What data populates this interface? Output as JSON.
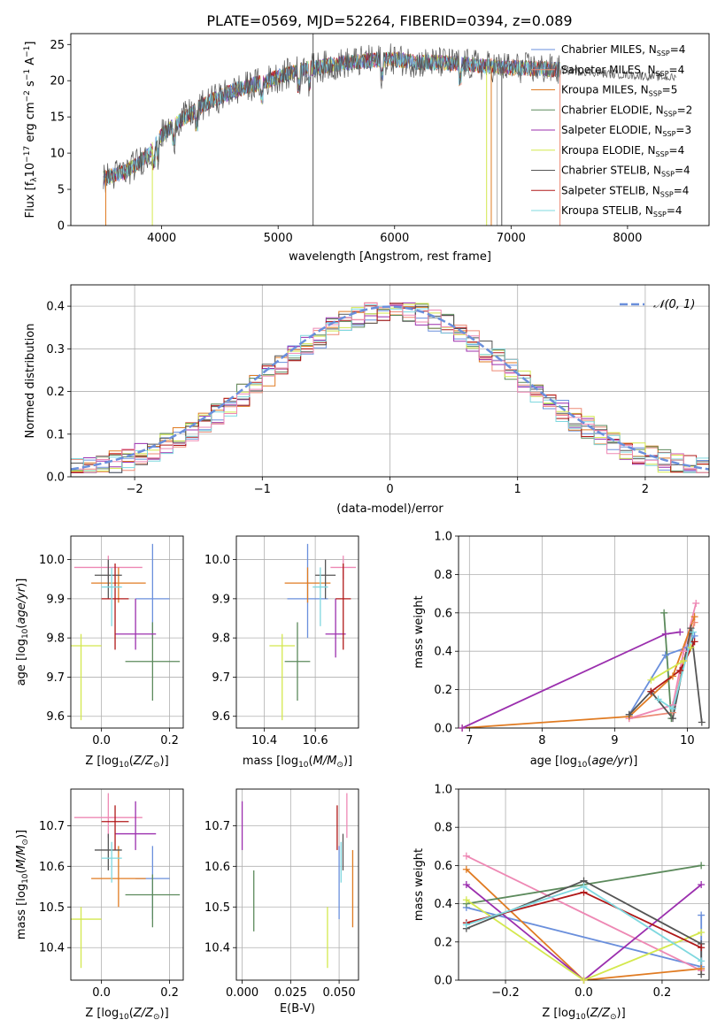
{
  "figure_title": "PLATE=0569, MJD=52264, FIBERID=0394, z=0.089",
  "series_colors": {
    "Chabrier MILES": "#6a8fdc",
    "Salpeter MILES": "#ed8a76",
    "Kroupa MILES": "#e07b22",
    "Chabrier ELODIE": "#5c8a5c",
    "Salpeter ELODIE": "#9b2fae",
    "Kroupa ELODIE": "#d4e84e",
    "Chabrier STELIB": "#555555",
    "Salpeter STELIB": "#b01818",
    "Kroupa STELIB": "#7fd8df",
    "pink": "#ee88b4"
  },
  "chart_data": [
    {
      "panel": "spectrum",
      "type": "line",
      "xlabel": "wavelength [Angstrom, rest frame]",
      "ylabel": "Flux [f_λ10^-17 erg cm^-2 s^-1 A^-1]",
      "xlim": [
        3220,
        8700
      ],
      "ylim": [
        0,
        26.5
      ],
      "xticks": [
        4000,
        5000,
        6000,
        7000,
        8000
      ],
      "yticks": [
        0,
        5,
        10,
        15,
        20,
        25
      ],
      "grid": false,
      "legend_position": "top-right",
      "legend": [
        {
          "label": "Chabrier MILES, N",
          "sub": "SSP",
          "tail": "=4",
          "color": "#6a8fdc"
        },
        {
          "label": "Salpeter MILES, N",
          "sub": "SSP",
          "tail": "=4",
          "color": "#ed8a76"
        },
        {
          "label": "Kroupa MILES, N",
          "sub": "SSP",
          "tail": "=5",
          "color": "#e07b22"
        },
        {
          "label": "Chabrier ELODIE, N",
          "sub": "SSP",
          "tail": "=2",
          "color": "#5c8a5c"
        },
        {
          "label": "Salpeter ELODIE, N",
          "sub": "SSP",
          "tail": "=3",
          "color": "#9b2fae"
        },
        {
          "label": "Kroupa ELODIE, N",
          "sub": "SSP",
          "tail": "=4",
          "color": "#d4e84e"
        },
        {
          "label": "Chabrier STELIB, N",
          "sub": "SSP",
          "tail": "=4",
          "color": "#555555"
        },
        {
          "label": "Salpeter STELIB, N",
          "sub": "SSP",
          "tail": "=4",
          "color": "#b01818"
        },
        {
          "label": "Kroupa STELIB, N",
          "sub": "SSP",
          "tail": "=4",
          "color": "#7fd8df"
        }
      ],
      "continuum": {
        "x": [
          3500,
          3700,
          3900,
          4000,
          4200,
          4400,
          4600,
          4800,
          5000,
          5200,
          5400,
          5600,
          5800,
          6000,
          6200,
          6400,
          6600,
          6800,
          7000,
          7200,
          7400,
          7600,
          7800,
          8000,
          8200,
          8400
        ],
        "y": [
          6.5,
          7.5,
          10.0,
          12.5,
          15.0,
          17.0,
          18.5,
          19.5,
          20.5,
          21.5,
          22.0,
          22.5,
          22.8,
          23.0,
          22.5,
          22.5,
          22.3,
          22.0,
          21.8,
          21.7,
          21.5,
          21.3,
          21.0,
          20.8,
          20.6,
          20.4
        ]
      },
      "masked_spikes": [
        3520,
        3920,
        5300,
        6790,
        6830,
        6880,
        6920,
        7420
      ]
    },
    {
      "panel": "residual_histogram",
      "type": "bar",
      "xlabel": "(data-model)/error",
      "ylabel": "Normed distribution",
      "xlim": [
        -2.5,
        2.5
      ],
      "ylim": [
        0,
        0.45
      ],
      "xticks": [
        -2,
        -1,
        0,
        1,
        2
      ],
      "yticks": [
        0.0,
        0.1,
        0.2,
        0.3,
        0.4
      ],
      "grid": true,
      "legend_position": "top-right",
      "reference_curve": {
        "label": "𝒩(0, 1)",
        "color": "#6a8fdc",
        "mean": 0,
        "sigma": 1
      }
    },
    {
      "panel": "age_vs_Z",
      "type": "scatter",
      "xlabel": "Z [log10(Z/Z☉)]",
      "ylabel": "age  [log10(age/yr)]",
      "xlim": [
        -0.09,
        0.24
      ],
      "ylim": [
        9.57,
        10.06
      ],
      "xticks": [
        0.0,
        0.2
      ],
      "yticks": [
        9.6,
        9.7,
        9.8,
        9.9,
        10.0
      ],
      "grid": true,
      "points": [
        {
          "x": 0.15,
          "y": 9.9,
          "xerr": 0.05,
          "yerr": [
            0.1,
            0.14
          ],
          "color": "#6a8fdc"
        },
        {
          "x": 0.02,
          "y": 9.98,
          "xerr": 0.1,
          "yerr": [
            0.03,
            0.03
          ],
          "color": "#ee88b4"
        },
        {
          "x": 0.05,
          "y": 9.94,
          "xerr": 0.08,
          "yerr": [
            0.05,
            0.04
          ],
          "color": "#e07b22"
        },
        {
          "x": 0.15,
          "y": 9.74,
          "xerr": 0.08,
          "yerr": [
            0.1,
            0.1
          ],
          "color": "#5c8a5c"
        },
        {
          "x": 0.1,
          "y": 9.81,
          "xerr": 0.06,
          "yerr": [
            0.04,
            0.09
          ],
          "color": "#9b2fae"
        },
        {
          "x": -0.06,
          "y": 9.78,
          "xerr": 0.06,
          "yerr": [
            0.19,
            0.03
          ],
          "color": "#d4e84e"
        },
        {
          "x": 0.02,
          "y": 9.96,
          "xerr": 0.04,
          "yerr": [
            0.06,
            0.04
          ],
          "color": "#555555"
        },
        {
          "x": 0.04,
          "y": 9.9,
          "xerr": 0.04,
          "yerr": [
            0.13,
            0.09
          ],
          "color": "#b01818"
        },
        {
          "x": 0.03,
          "y": 9.93,
          "xerr": 0.03,
          "yerr": [
            0.1,
            0.05
          ],
          "color": "#7fd8df"
        }
      ]
    },
    {
      "panel": "age_vs_mass",
      "type": "scatter",
      "xlabel": "mass [log10(M/M☉)]",
      "xlim": [
        10.29,
        10.77
      ],
      "ylim": [
        9.57,
        10.06
      ],
      "xticks": [
        10.4,
        10.6
      ],
      "yticks": [
        9.6,
        9.7,
        9.8,
        9.9,
        10.0
      ],
      "grid": true,
      "points": [
        {
          "x": 10.57,
          "y": 9.9,
          "xerr": 0.08,
          "yerr": [
            0.1,
            0.14
          ],
          "color": "#6a8fdc"
        },
        {
          "x": 10.71,
          "y": 9.98,
          "xerr": 0.05,
          "yerr": [
            0.03,
            0.03
          ],
          "color": "#ee88b4"
        },
        {
          "x": 10.57,
          "y": 9.94,
          "xerr": 0.09,
          "yerr": [
            0.05,
            0.04
          ],
          "color": "#e07b22"
        },
        {
          "x": 10.53,
          "y": 9.74,
          "xerr": 0.05,
          "yerr": [
            0.1,
            0.1
          ],
          "color": "#5c8a5c"
        },
        {
          "x": 10.68,
          "y": 9.81,
          "xerr": 0.04,
          "yerr": [
            0.06,
            0.09
          ],
          "color": "#9b2fae"
        },
        {
          "x": 10.47,
          "y": 9.78,
          "xerr": 0.05,
          "yerr": [
            0.19,
            0.03
          ],
          "color": "#d4e84e"
        },
        {
          "x": 10.64,
          "y": 9.96,
          "xerr": 0.04,
          "yerr": [
            0.06,
            0.04
          ],
          "color": "#555555"
        },
        {
          "x": 10.71,
          "y": 9.9,
          "xerr": 0.03,
          "yerr": [
            0.13,
            0.09
          ],
          "color": "#b01818"
        },
        {
          "x": 10.62,
          "y": 9.93,
          "xerr": 0.03,
          "yerr": [
            0.1,
            0.05
          ],
          "color": "#7fd8df"
        }
      ]
    },
    {
      "panel": "mass_weight_vs_age",
      "type": "line",
      "xlabel": "age  [log10(age/yr)]",
      "ylabel": "mass weight",
      "xlim": [
        6.85,
        10.3
      ],
      "ylim": [
        0,
        1.0
      ],
      "xticks": [
        7,
        8,
        9,
        10
      ],
      "yticks": [
        0.0,
        0.2,
        0.4,
        0.6,
        0.8,
        1.0
      ],
      "grid": true,
      "series": [
        {
          "color": "#6a8fdc",
          "x": [
            9.2,
            9.7,
            10.0,
            10.1
          ],
          "y": [
            0.07,
            0.38,
            0.42,
            0.48
          ]
        },
        {
          "color": "#ed8a76",
          "x": [
            9.2,
            9.8,
            9.95,
            10.1
          ],
          "y": [
            0.05,
            0.08,
            0.35,
            0.55
          ]
        },
        {
          "color": "#ee88b4",
          "x": [
            9.2,
            9.8,
            9.95,
            10.12
          ],
          "y": [
            0.05,
            0.12,
            0.4,
            0.65
          ]
        },
        {
          "color": "#e07b22",
          "x": [
            6.9,
            9.2,
            9.8,
            10.1
          ],
          "y": [
            0.0,
            0.06,
            0.27,
            0.58
          ]
        },
        {
          "color": "#5c8a5c",
          "x": [
            9.68,
            9.78
          ],
          "y": [
            0.6,
            0.05
          ]
        },
        {
          "color": "#9b2fae",
          "x": [
            6.9,
            9.7,
            9.9
          ],
          "y": [
            0.0,
            0.49,
            0.5
          ]
        },
        {
          "color": "#d4e84e",
          "x": [
            9.5,
            9.95,
            10.05
          ],
          "y": [
            0.25,
            0.35,
            0.42
          ]
        },
        {
          "color": "#555555",
          "x": [
            9.2,
            9.5,
            9.8,
            10.05,
            10.2
          ],
          "y": [
            0.07,
            0.19,
            0.05,
            0.52,
            0.03
          ]
        },
        {
          "color": "#b01818",
          "x": [
            9.5,
            9.9,
            10.1
          ],
          "y": [
            0.19,
            0.3,
            0.45
          ]
        },
        {
          "color": "#7fd8df",
          "x": [
            9.6,
            9.8,
            10.08
          ],
          "y": [
            0.15,
            0.1,
            0.5
          ]
        }
      ]
    },
    {
      "panel": "mass_vs_Z",
      "type": "scatter",
      "xlabel": "Z [log10(Z/Z☉)]",
      "ylabel": "mass [log10(M/M☉)]",
      "xlim": [
        -0.09,
        0.24
      ],
      "ylim": [
        10.32,
        10.79
      ],
      "xticks": [
        0.0,
        0.2
      ],
      "yticks": [
        10.4,
        10.5,
        10.6,
        10.7
      ],
      "grid": true,
      "points": [
        {
          "x": 0.15,
          "y": 10.57,
          "xerr": 0.05,
          "yerr": [
            0.1,
            0.08
          ],
          "color": "#6a8fdc"
        },
        {
          "x": 0.02,
          "y": 10.72,
          "xerr": 0.1,
          "yerr": [
            0.05,
            0.06
          ],
          "color": "#ee88b4"
        },
        {
          "x": 0.05,
          "y": 10.57,
          "xerr": 0.08,
          "yerr": [
            0.07,
            0.08
          ],
          "color": "#e07b22"
        },
        {
          "x": 0.15,
          "y": 10.53,
          "xerr": 0.08,
          "yerr": [
            0.08,
            0.05
          ],
          "color": "#5c8a5c"
        },
        {
          "x": 0.1,
          "y": 10.68,
          "xerr": 0.06,
          "yerr": [
            0.04,
            0.08
          ],
          "color": "#9b2fae"
        },
        {
          "x": -0.06,
          "y": 10.47,
          "xerr": 0.06,
          "yerr": [
            0.12,
            0.03
          ],
          "color": "#d4e84e"
        },
        {
          "x": 0.02,
          "y": 10.64,
          "xerr": 0.04,
          "yerr": [
            0.05,
            0.04
          ],
          "color": "#555555"
        },
        {
          "x": 0.04,
          "y": 10.71,
          "xerr": 0.04,
          "yerr": [
            0.07,
            0.04
          ],
          "color": "#b01818"
        },
        {
          "x": 0.03,
          "y": 10.62,
          "xerr": 0.03,
          "yerr": [
            0.06,
            0.04
          ],
          "color": "#7fd8df"
        }
      ]
    },
    {
      "panel": "mass_vs_EBV",
      "type": "scatter",
      "xlabel": "E(B-V)",
      "xlim": [
        -0.003,
        0.06
      ],
      "ylim": [
        10.32,
        10.79
      ],
      "xticks": [
        0.0,
        0.025,
        0.05
      ],
      "yticks": [
        10.4,
        10.5,
        10.6,
        10.7
      ],
      "grid": true,
      "points": [
        {
          "x": 0.05,
          "y": 10.57,
          "yerr": [
            0.1,
            0.08
          ],
          "color": "#6a8fdc"
        },
        {
          "x": 0.054,
          "y": 10.72,
          "yerr": [
            0.05,
            0.06
          ],
          "color": "#ee88b4"
        },
        {
          "x": 0.057,
          "y": 10.57,
          "yerr": [
            0.12,
            0.07
          ],
          "color": "#e07b22"
        },
        {
          "x": 0.006,
          "y": 10.53,
          "yerr": [
            0.09,
            0.06
          ],
          "color": "#5c8a5c"
        },
        {
          "x": 0.0,
          "y": 10.7,
          "yerr": [
            0.06,
            0.06
          ],
          "color": "#9b2fae"
        },
        {
          "x": 0.044,
          "y": 10.47,
          "yerr": [
            0.12,
            0.03
          ],
          "color": "#d4e84e"
        },
        {
          "x": 0.052,
          "y": 10.64,
          "yerr": [
            0.05,
            0.04
          ],
          "color": "#555555"
        },
        {
          "x": 0.049,
          "y": 10.71,
          "yerr": [
            0.07,
            0.04
          ],
          "color": "#b01818"
        },
        {
          "x": 0.051,
          "y": 10.62,
          "yerr": [
            0.06,
            0.04
          ],
          "color": "#7fd8df"
        }
      ]
    },
    {
      "panel": "mass_weight_vs_Z",
      "type": "line",
      "xlabel": "Z [log10(Z/Z☉)]",
      "ylabel": "mass weight",
      "xlim": [
        -0.32,
        0.32
      ],
      "ylim": [
        0,
        1.0
      ],
      "xticks": [
        -0.2,
        0.0,
        0.2
      ],
      "yticks": [
        0.0,
        0.2,
        0.4,
        0.6,
        0.8,
        1.0
      ],
      "grid": true,
      "series": [
        {
          "color": "#6a8fdc",
          "x": [
            -0.3,
            0.3,
            0.3
          ],
          "y": [
            0.38,
            0.07,
            0.34
          ]
        },
        {
          "color": "#ee88b4",
          "x": [
            -0.3,
            0.3
          ],
          "y": [
            0.65,
            0.05
          ]
        },
        {
          "color": "#e07b22",
          "x": [
            -0.3,
            0.0,
            0.3
          ],
          "y": [
            0.58,
            0.0,
            0.06
          ]
        },
        {
          "color": "#5c8a5c",
          "x": [
            -0.3,
            0.3
          ],
          "y": [
            0.4,
            0.6
          ]
        },
        {
          "color": "#9b2fae",
          "x": [
            -0.3,
            0.0,
            0.3
          ],
          "y": [
            0.5,
            0.0,
            0.5
          ]
        },
        {
          "color": "#d4e84e",
          "x": [
            -0.3,
            0.0,
            0.3
          ],
          "y": [
            0.42,
            0.0,
            0.25
          ]
        },
        {
          "color": "#555555",
          "x": [
            -0.3,
            0.0,
            0.3,
            0.3
          ],
          "y": [
            0.27,
            0.52,
            0.19,
            0.03
          ]
        },
        {
          "color": "#b01818",
          "x": [
            -0.3,
            0.0,
            0.3
          ],
          "y": [
            0.3,
            0.46,
            0.17
          ]
        },
        {
          "color": "#7fd8df",
          "x": [
            -0.3,
            0.0,
            0.3
          ],
          "y": [
            0.29,
            0.49,
            0.1
          ]
        }
      ]
    }
  ]
}
